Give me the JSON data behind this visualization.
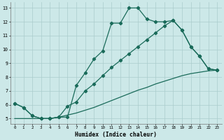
{
  "xlabel": "Humidex (Indice chaleur)",
  "bg_color": "#cce8e8",
  "grid_color": "#aacccc",
  "line_color": "#1a6b5a",
  "xlim": [
    -0.5,
    23.5
  ],
  "ylim": [
    4.6,
    13.4
  ],
  "xticks": [
    0,
    1,
    2,
    3,
    4,
    5,
    6,
    7,
    8,
    9,
    10,
    11,
    12,
    13,
    14,
    15,
    16,
    17,
    18,
    19,
    20,
    21,
    22,
    23
  ],
  "yticks": [
    5,
    6,
    7,
    8,
    9,
    10,
    11,
    12,
    13
  ],
  "line1_x": [
    0,
    1,
    2,
    3,
    4,
    5,
    6,
    7,
    8,
    9,
    10,
    11,
    12,
    13,
    14,
    15,
    16,
    17,
    18,
    19,
    20,
    21,
    22,
    23
  ],
  "line1_y": [
    6.1,
    5.8,
    5.2,
    5.0,
    5.0,
    5.1,
    5.1,
    7.4,
    8.3,
    9.3,
    9.9,
    11.9,
    11.9,
    13.0,
    13.0,
    12.2,
    12.0,
    12.0,
    12.1,
    11.4,
    10.2,
    9.5,
    8.6,
    8.5
  ],
  "line2_x": [
    0,
    1,
    2,
    3,
    4,
    5,
    6,
    7,
    8,
    9,
    10,
    11,
    12,
    13,
    14,
    15,
    16,
    17,
    18,
    19,
    20,
    21,
    22,
    23
  ],
  "line2_y": [
    6.1,
    5.8,
    5.2,
    5.0,
    5.0,
    5.1,
    5.9,
    6.2,
    7.0,
    7.5,
    8.1,
    8.7,
    9.2,
    9.7,
    10.2,
    10.7,
    11.2,
    11.7,
    12.1,
    11.4,
    10.2,
    9.5,
    8.6,
    8.5
  ],
  "line3_x": [
    0,
    2,
    3,
    4,
    5,
    6,
    7,
    8,
    9,
    10,
    11,
    12,
    13,
    14,
    15,
    16,
    17,
    18,
    19,
    20,
    21,
    22,
    23
  ],
  "line3_y": [
    5.0,
    5.0,
    5.0,
    5.0,
    5.1,
    5.25,
    5.4,
    5.6,
    5.8,
    6.05,
    6.3,
    6.55,
    6.8,
    7.05,
    7.25,
    7.5,
    7.7,
    7.9,
    8.1,
    8.25,
    8.35,
    8.45,
    8.5
  ],
  "markersize": 2.2,
  "linewidth": 0.9
}
